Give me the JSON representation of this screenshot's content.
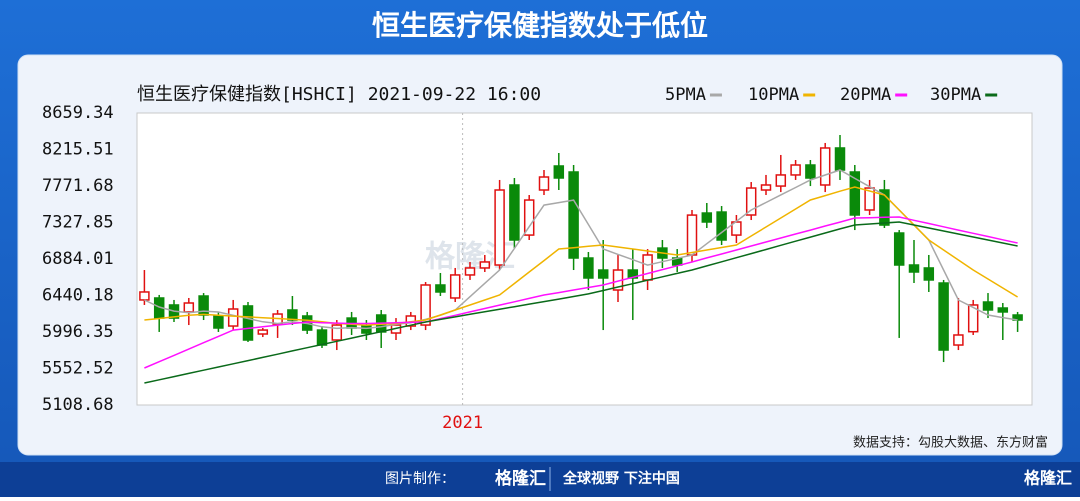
{
  "header": {
    "title": "恒生医疗保健指数处于低位"
  },
  "chart_data": {
    "type": "candlestick",
    "subtitle": "恒生医疗保健指数[HSHCI] 2021-09-22 16:00",
    "categories": [
      null,
      null,
      null,
      null,
      null,
      null,
      null,
      null,
      null,
      null,
      null,
      null,
      null,
      null,
      null,
      null,
      null,
      null,
      null,
      null,
      null,
      null,
      "2021",
      null,
      null,
      null,
      null,
      null,
      null,
      null,
      null,
      null,
      null,
      null,
      null,
      null,
      null,
      null,
      null,
      null,
      null,
      null,
      null,
      null,
      null,
      null,
      null,
      null,
      null,
      null,
      null,
      null,
      null,
      null,
      null,
      null,
      null,
      null,
      null,
      null
    ],
    "candles": {
      "open": [
        6386,
        6410,
        6325,
        6240,
        6434,
        6191,
        6069,
        6313,
        5972,
        6093,
        6264,
        6191,
        6020,
        5899,
        6166,
        6069,
        6203,
        5984,
        6069,
        6081,
        6568,
        6410,
        6690,
        6775,
        6811,
        7784,
        7175,
        7723,
        8015,
        7942,
        6896,
        6750,
        6507,
        6750,
        6629,
        7017,
        6896,
        6933,
        7443,
        7455,
        7175,
        7419,
        7723,
        7771,
        7906,
        8027,
        7784,
        8234,
        7942,
        7480,
        7723,
        7200,
        6811,
        6775,
        6592,
        5838,
        6000,
        6361,
        6288,
        6203
      ],
      "high": [
        6750,
        6447,
        6386,
        6410,
        6470,
        6240,
        6386,
        6361,
        6045,
        6264,
        6434,
        6240,
        6069,
        6142,
        6240,
        6142,
        6264,
        6166,
        6240,
        6604,
        6714,
        6775,
        6848,
        6933,
        7845,
        7869,
        7662,
        7966,
        8173,
        8027,
        6969,
        7115,
        6933,
        7005,
        7005,
        7115,
        7005,
        7480,
        7565,
        7528,
        7419,
        7820,
        7906,
        8149,
        8088,
        8088,
        8295,
        8392,
        8027,
        7845,
        7845,
        7236,
        7115,
        6933,
        6629,
        6410,
        6386,
        6470,
        6349,
        6240
      ],
      "low": [
        6325,
        5997,
        6118,
        6081,
        6142,
        5997,
        6020,
        5875,
        5935,
        5924,
        6081,
        5972,
        5802,
        5777,
        5960,
        5899,
        5802,
        5899,
        6020,
        6020,
        6434,
        6361,
        6629,
        6726,
        6750,
        7017,
        7115,
        7662,
        7723,
        6750,
        6507,
        6020,
        6361,
        6142,
        6507,
        6775,
        6726,
        6848,
        7261,
        7054,
        7078,
        7358,
        7662,
        7698,
        7845,
        7771,
        7698,
        7845,
        7236,
        7419,
        7261,
        5924,
        6592,
        6483,
        5631,
        5777,
        5960,
        6166,
        5899,
        5997
      ],
      "close": [
        6483,
        6166,
        6166,
        6349,
        6203,
        6045,
        6276,
        5899,
        6020,
        6215,
        6142,
        6020,
        5838,
        6081,
        6045,
        5984,
        5997,
        6081,
        6191,
        6568,
        6483,
        6690,
        6775,
        6848,
        7723,
        7115,
        7601,
        7881,
        7869,
        6896,
        6653,
        6653,
        6750,
        6653,
        6933,
        6896,
        6811,
        7418,
        7334,
        7115,
        7334,
        7747,
        7784,
        7906,
        8027,
        7869,
        8234,
        7966,
        7419,
        7747,
        7297,
        6811,
        6726,
        6629,
        5777,
        5960,
        6325,
        6264,
        6240,
        6142
      ],
      "up_color": "#e01010",
      "down_color": "#0a8a0a"
    },
    "series": [
      {
        "name": "5PMA",
        "color": "#a8a8a8",
        "values": [
          6386,
          6300,
          6250,
          6230,
          6250,
          6240,
          6200,
          6160,
          6120,
          6100,
          6120,
          6100,
          6060,
          6040,
          6050,
          6040,
          6060,
          6090,
          6110,
          6150,
          6200,
          6264,
          6426,
          6588,
          6750,
          7013,
          7277,
          7540,
          7570,
          7600,
          7303,
          7005,
          6940,
          6875,
          6810,
          6851,
          6892,
          6933,
          7070,
          7206,
          7343,
          7480,
          7571,
          7663,
          7754,
          7845,
          7905,
          7966,
          7864,
          7763,
          7662,
          7480,
          7297,
          7115,
          6750,
          6386,
          6295,
          6203,
          6172,
          6142
        ]
      },
      {
        "name": "10PMA",
        "color": "#f0b400",
        "values": [
          6142,
          6160,
          6180,
          6200,
          6210,
          6200,
          6190,
          6180,
          6170,
          6160,
          6150,
          6140,
          6120,
          6100,
          6090,
          6080,
          6090,
          6100,
          6120,
          6142,
          6203,
          6264,
          6325,
          6386,
          6446,
          6586,
          6726,
          6865,
          7005,
          7021,
          7038,
          7054,
          7030,
          7006,
          6981,
          6957,
          6933,
          6963,
          6994,
          7024,
          7054,
          7164,
          7273,
          7383,
          7492,
          7602,
          7655,
          7708,
          7760,
          7711,
          7662,
          7480,
          7297,
          7115,
          6993,
          6872,
          6750,
          6641,
          6531,
          6422
        ]
      },
      {
        "name": "20PMA",
        "color": "#ff10ff",
        "values": [
          5558,
          5635,
          5712,
          5789,
          5866,
          5943,
          6020,
          6040,
          6060,
          6080,
          6100,
          6118,
          6110,
          6105,
          6100,
          6100,
          6105,
          6110,
          6115,
          6118,
          6159,
          6200,
          6241,
          6282,
          6323,
          6364,
          6405,
          6446,
          6476,
          6507,
          6537,
          6568,
          6615,
          6662,
          6708,
          6755,
          6801,
          6848,
          6897,
          6945,
          6994,
          7042,
          7091,
          7139,
          7188,
          7236,
          7285,
          7333,
          7382,
          7386,
          7391,
          7395,
          7355,
          7316,
          7276,
          7236,
          7197,
          7157,
          7118,
          7078
        ]
      },
      {
        "name": "30PMA",
        "color": "#0a6a1a",
        "values": [
          5376,
          5415,
          5454,
          5493,
          5532,
          5571,
          5610,
          5649,
          5688,
          5727,
          5766,
          5805,
          5844,
          5883,
          5922,
          5961,
          6000,
          6040,
          6079,
          6118,
          6149,
          6180,
          6211,
          6242,
          6273,
          6304,
          6335,
          6366,
          6397,
          6428,
          6460,
          6501,
          6543,
          6584,
          6626,
          6667,
          6709,
          6750,
          6800,
          6850,
          6900,
          6950,
          7000,
          7050,
          7100,
          7150,
          7200,
          7250,
          7297,
          7310,
          7322,
          7334,
          7297,
          7261,
          7224,
          7188,
          7151,
          7115,
          7078,
          7042
        ]
      }
    ],
    "ylim": [
      5108.68,
      8659.34
    ],
    "yticks": [
      8659.34,
      8215.51,
      7771.68,
      7327.85,
      6884.01,
      6440.18,
      5996.35,
      5552.52,
      5108.68
    ],
    "grid": false
  },
  "watermark": "格隆汇",
  "source": "数据支持：勾股大数据、东方财富",
  "footer": {
    "made_by": "图片制作：",
    "logo": "格隆汇",
    "slogan": "全球视野 下注中国",
    "corner_logo": "格隆汇"
  }
}
